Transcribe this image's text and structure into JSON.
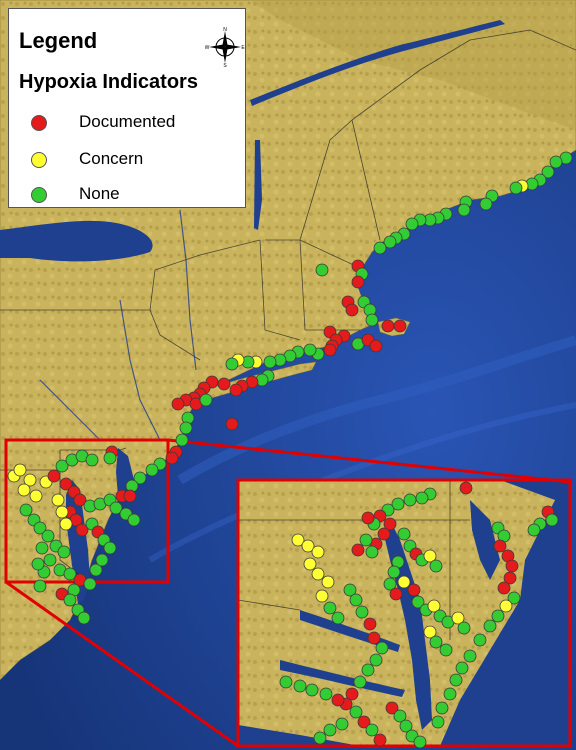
{
  "legend": {
    "title": "Legend",
    "subtitle": "Hypoxia Indicators",
    "items": [
      {
        "label": "Documented",
        "color": "#e41a1c"
      },
      {
        "label": "Concern",
        "color": "#ffff33"
      },
      {
        "label": "None",
        "color": "#33cc33"
      }
    ],
    "compass": {
      "n": "N",
      "s": "S",
      "e": "E",
      "w": "W"
    }
  },
  "colors": {
    "ocean": "#1f3f8f",
    "land": "#c8b25a",
    "border": "#222222",
    "highlight": "#e00000"
  },
  "sites": {
    "documented_count_approx": 95,
    "concern_count_approx": 30,
    "none_count_approx": 160
  }
}
